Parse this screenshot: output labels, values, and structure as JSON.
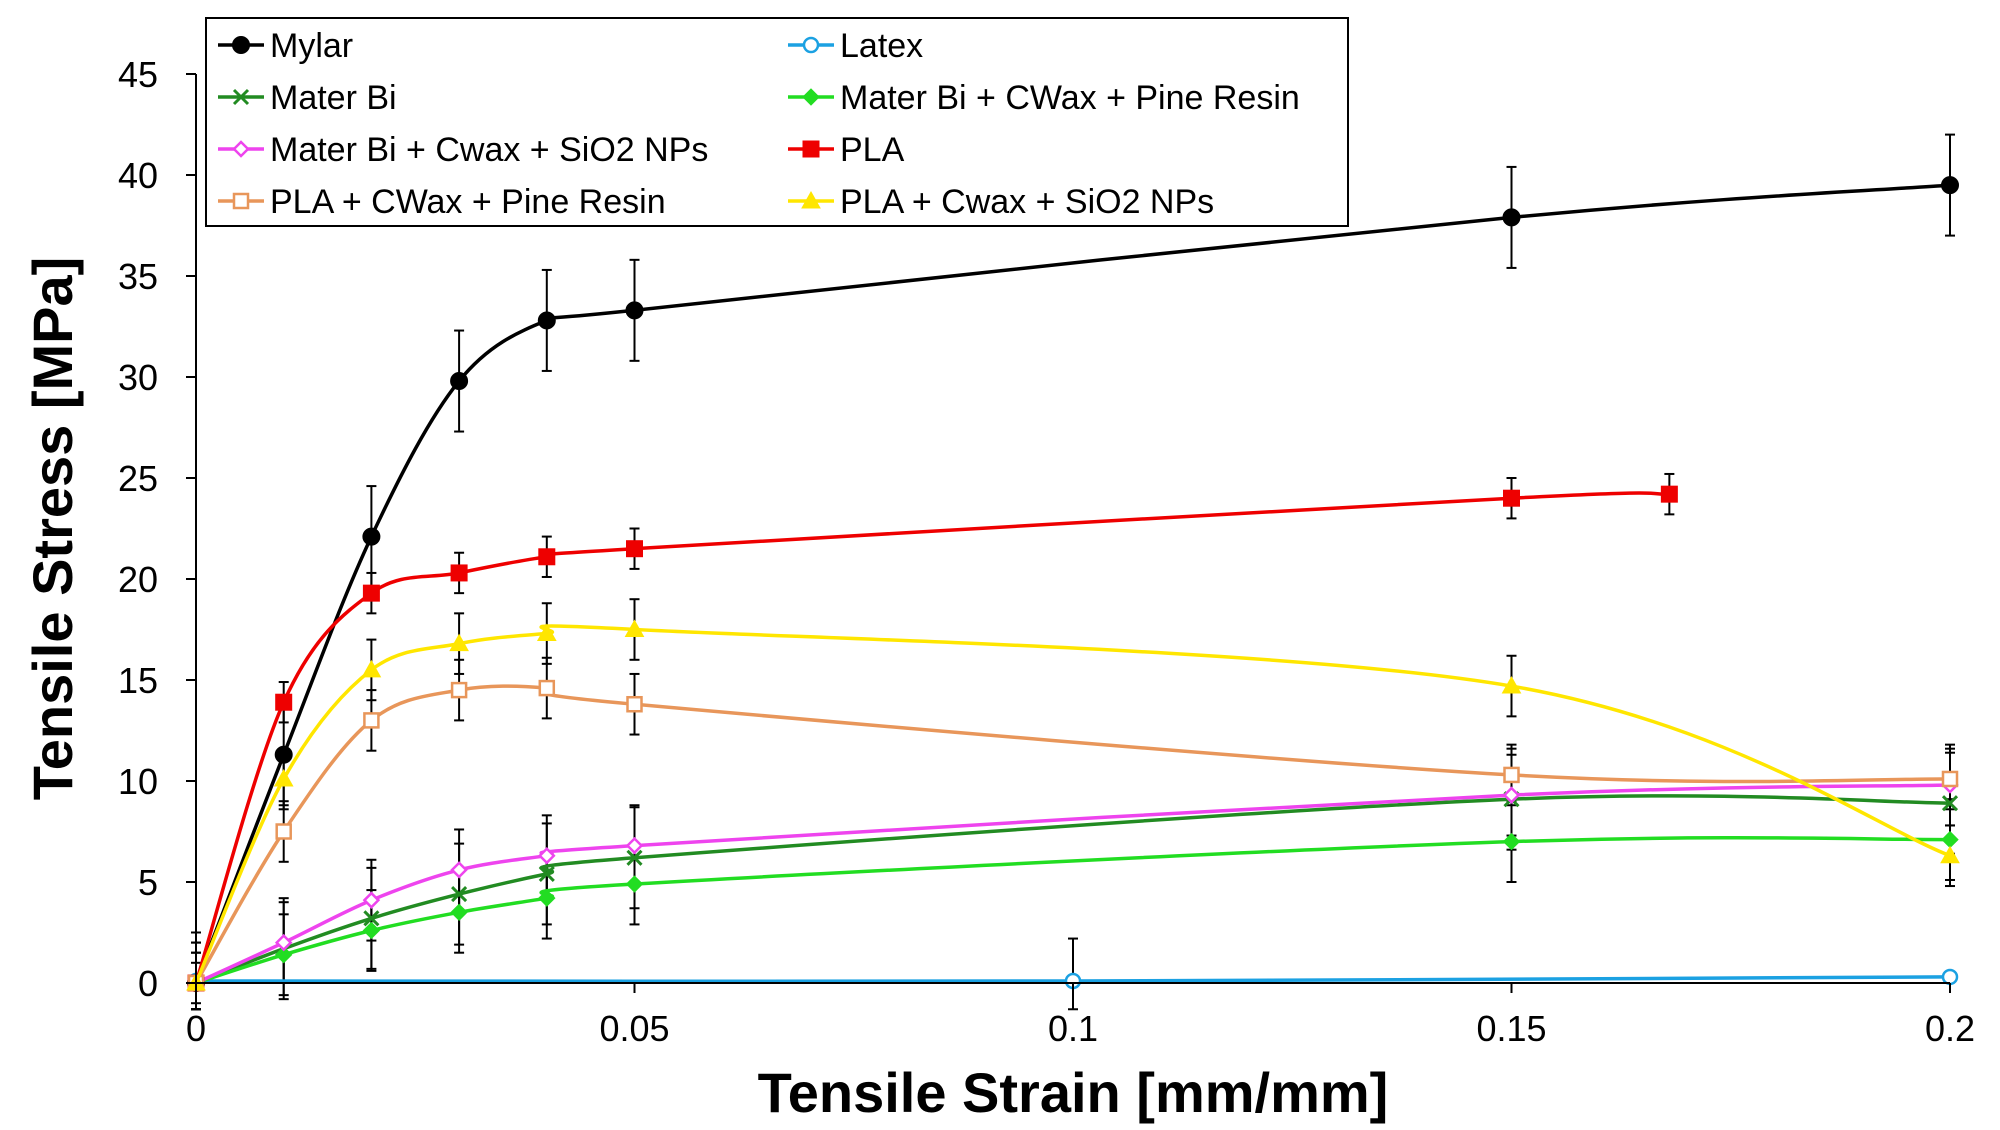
{
  "chart_data": {
    "type": "line",
    "title": "",
    "xlabel": "Tensile Strain [mm/mm]",
    "ylabel": "Tensile Stress [MPa]",
    "xlim": [
      0,
      0.2
    ],
    "ylim": [
      0,
      45
    ],
    "x_ticks": [
      "0",
      "0.05",
      "0.1",
      "0.15",
      "0.2"
    ],
    "x_tick_values": [
      0,
      0.05,
      0.1,
      0.15,
      0.2
    ],
    "y_ticks": [
      "0",
      "5",
      "10",
      "15",
      "20",
      "25",
      "30",
      "35",
      "40",
      "45"
    ],
    "y_tick_values": [
      0,
      5,
      10,
      15,
      20,
      25,
      30,
      35,
      40,
      45
    ],
    "grid": false,
    "legend_position": "top",
    "series": [
      {
        "name": "Mylar",
        "color": "#000000",
        "marker": "circle-filled",
        "x": [
          0,
          0.01,
          0.02,
          0.03,
          0.04,
          0.05,
          0.15,
          0.2
        ],
        "y": [
          0,
          11.3,
          22.1,
          29.8,
          32.8,
          33.3,
          37.9,
          39.5
        ],
        "err": [
          2.5,
          2.5,
          2.5,
          2.5,
          2.5,
          2.5,
          2.5,
          2.5
        ]
      },
      {
        "name": "Latex",
        "color": "#1BA1E2",
        "marker": "circle-open",
        "x": [
          0,
          0.1,
          0.2
        ],
        "y": [
          0.1,
          0.1,
          0.3
        ],
        "err": [
          0,
          2.1,
          0
        ]
      },
      {
        "name": "Mater Bi",
        "color": "#228B22",
        "marker": "x",
        "x": [
          0,
          0.01,
          0.02,
          0.03,
          0.04,
          0.05,
          0.15,
          0.2
        ],
        "y": [
          0,
          1.7,
          3.2,
          4.4,
          5.4,
          6.2,
          9.1,
          8.9
        ],
        "err": [
          2.5,
          2.5,
          2.5,
          2.5,
          2.5,
          2.5,
          2.5,
          2.5
        ]
      },
      {
        "name": "Mater Bi + CWax + Pine Resin",
        "color": "#22DD22",
        "marker": "diamond-filled",
        "x": [
          0,
          0.01,
          0.02,
          0.03,
          0.04,
          0.05,
          0.15,
          0.2
        ],
        "y": [
          0,
          1.4,
          2.6,
          3.5,
          4.2,
          4.9,
          7.0,
          7.1
        ],
        "err": [
          2.0,
          2.0,
          2.0,
          2.0,
          2.0,
          2.0,
          2.0,
          2.0
        ]
      },
      {
        "name": "Mater Bi + Cwax + SiO2 NPs",
        "color": "#EE44EE",
        "marker": "diamond-open",
        "x": [
          0,
          0.01,
          0.02,
          0.03,
          0.04,
          0.05,
          0.15,
          0.2
        ],
        "y": [
          0,
          2.0,
          4.1,
          5.6,
          6.3,
          6.8,
          9.3,
          9.8
        ],
        "err": [
          2.0,
          2.0,
          2.0,
          2.0,
          2.0,
          2.0,
          2.0,
          2.0
        ]
      },
      {
        "name": "PLA",
        "color": "#EE0000",
        "marker": "square-filled",
        "x": [
          0,
          0.01,
          0.02,
          0.03,
          0.04,
          0.05,
          0.15,
          0.168
        ],
        "y": [
          0,
          13.9,
          19.3,
          20.3,
          21.1,
          21.5,
          24.0,
          24.2
        ],
        "err": [
          1.0,
          1.0,
          1.0,
          1.0,
          1.0,
          1.0,
          1.0,
          1.0
        ]
      },
      {
        "name": "PLA + CWax + Pine Resin",
        "color": "#E8965A",
        "marker": "square-open",
        "x": [
          0,
          0.01,
          0.02,
          0.03,
          0.04,
          0.05,
          0.15,
          0.2
        ],
        "y": [
          0,
          7.5,
          13.0,
          14.5,
          14.6,
          13.8,
          10.3,
          10.1
        ],
        "err": [
          1.5,
          1.5,
          1.5,
          1.5,
          1.5,
          1.5,
          1.5,
          1.5
        ]
      },
      {
        "name": "PLA + Cwax + SiO2 NPs",
        "color": "#FFE600",
        "marker": "triangle-filled",
        "x": [
          0,
          0.01,
          0.02,
          0.03,
          0.04,
          0.05,
          0.15,
          0.2
        ],
        "y": [
          0,
          10.1,
          15.5,
          16.8,
          17.3,
          17.5,
          14.7,
          6.3
        ],
        "err": [
          1.5,
          1.5,
          1.5,
          1.5,
          1.5,
          1.5,
          1.5,
          1.5
        ]
      }
    ]
  }
}
